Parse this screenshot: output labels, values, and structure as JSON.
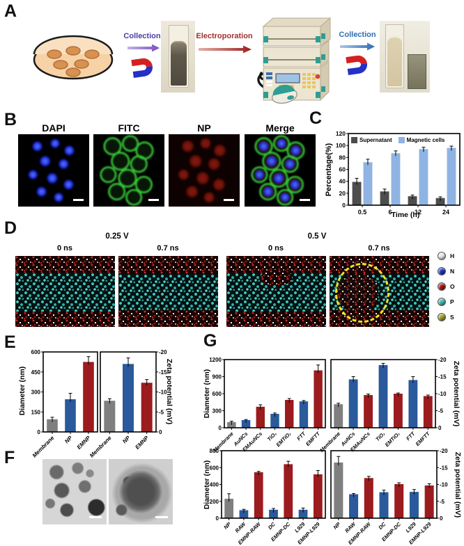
{
  "panel_labels": {
    "a": "A",
    "b": "B",
    "c": "C",
    "d": "D",
    "e": "E",
    "f": "F",
    "g": "G"
  },
  "panel_a": {
    "step1_label": "Collection",
    "step2_label": "Electroporation",
    "step3_label": "Collection",
    "step1_color": "#4a3f9f",
    "step2_color": "#a33030",
    "step3_color": "#2f6db5"
  },
  "panel_b": {
    "image_labels": [
      "DAPI",
      "FITC",
      "NP",
      "Merge"
    ]
  },
  "panel_d": {
    "voltage_labels": [
      "0.25 V",
      "0.5 V"
    ],
    "time_labels": [
      "0 ns",
      "0.7 ns",
      "0 ns",
      "0.7 ns"
    ],
    "atom_legend": [
      {
        "label": "H",
        "color": "#e8e8e8"
      },
      {
        "label": "N",
        "color": "#1c35c0"
      },
      {
        "label": "O",
        "color": "#a31515"
      },
      {
        "label": "P",
        "color": "#45b8b0"
      },
      {
        "label": "S",
        "color": "#9b9b2a"
      }
    ]
  },
  "chart_data": [
    {
      "id": "c_separation",
      "type": "bar",
      "categories": [
        "0.5",
        "6",
        "12",
        "24"
      ],
      "series": [
        {
          "name": "Supernatant",
          "color": "#4d4d4d",
          "values": [
            39,
            23,
            15,
            12
          ],
          "errors": [
            6,
            4,
            2,
            2
          ]
        },
        {
          "name": "Magnetic cells",
          "color": "#8fb4e3",
          "values": [
            72,
            87,
            94,
            96
          ],
          "errors": [
            5,
            4,
            3,
            3
          ]
        }
      ],
      "ylabel": "Percentage(%)",
      "xlabel": "Time (h)",
      "ylim": [
        0,
        120
      ],
      "yticks": [
        0,
        20,
        40,
        60,
        80,
        100,
        120
      ],
      "axis_side": "left",
      "legend_position": "top-inside"
    },
    {
      "id": "e_diameter",
      "type": "bar",
      "categories": [
        "Membrane",
        "NP",
        "EMNP"
      ],
      "series": [
        {
          "colors": [
            "#7f7f7f",
            "#2a5a9b",
            "#9c1b1e"
          ],
          "values": [
            95,
            245,
            525
          ],
          "errors": [
            15,
            45,
            40
          ]
        }
      ],
      "ylabel": "Diameter (nm)",
      "xlabel": "",
      "ylim": [
        0,
        600
      ],
      "yticks": [
        0,
        150,
        300,
        450,
        600
      ],
      "axis_side": "left"
    },
    {
      "id": "e_zeta",
      "type": "bar",
      "categories": [
        "Membrane",
        "NP",
        "EMNP"
      ],
      "series": [
        {
          "colors": [
            "#7f7f7f",
            "#2a5a9b",
            "#9c1b1e"
          ],
          "values": [
            -7.8,
            -17,
            -12.3
          ],
          "errors": [
            0.5,
            1.5,
            0.8
          ]
        }
      ],
      "ylabel": "Zeta potential (mV)",
      "xlabel": "",
      "ylim": [
        0,
        -20
      ],
      "yticks": [
        0,
        -5,
        -10,
        -15,
        -20
      ],
      "axis_side": "right"
    },
    {
      "id": "g_top_diameter",
      "type": "bar",
      "categories": [
        "Membrane",
        "AuNCs",
        "EMAuNCs",
        "TiO₂",
        "EMTiO₂",
        "FTT",
        "EMFTT"
      ],
      "series": [
        {
          "colors": [
            "#7f7f7f",
            "#2a5a9b",
            "#9c1b1e",
            "#2a5a9b",
            "#9c1b1e",
            "#2a5a9b",
            "#9c1b1e"
          ],
          "values": [
            100,
            135,
            370,
            245,
            490,
            465,
            1010
          ],
          "errors": [
            15,
            10,
            35,
            15,
            25,
            15,
            95
          ]
        }
      ],
      "ylabel": "Diameter (nm)",
      "xlabel": "",
      "ylim": [
        0,
        1200
      ],
      "yticks": [
        0,
        300,
        600,
        900,
        1200
      ],
      "axis_side": "left"
    },
    {
      "id": "g_top_zeta",
      "type": "bar",
      "categories": [
        "Membrane",
        "AuNCs",
        "EMAuNCs",
        "TiO₂",
        "EMTiO₂",
        "FTT",
        "EMFTT"
      ],
      "series": [
        {
          "colors": [
            "#7f7f7f",
            "#2a5a9b",
            "#9c1b1e",
            "#2a5a9b",
            "#9c1b1e",
            "#2a5a9b",
            "#9c1b1e"
          ],
          "values": [
            -6.9,
            -14.2,
            -9.6,
            -18.4,
            -10,
            -14,
            -9.3
          ],
          "errors": [
            0.3,
            0.8,
            0.3,
            0.5,
            0.2,
            1,
            0.3
          ]
        }
      ],
      "ylabel": "Zeta potential (mV)",
      "xlabel": "",
      "ylim": [
        0,
        -20
      ],
      "yticks": [
        0,
        -5,
        -10,
        -15,
        -20
      ],
      "axis_side": "right"
    },
    {
      "id": "g_bottom_diameter",
      "type": "bar",
      "categories": [
        "NP",
        "RAW",
        "EMNP-RAW",
        "DC",
        "EMNP-DC",
        "L929",
        "EMNP-L929"
      ],
      "series": [
        {
          "colors": [
            "#7f7f7f",
            "#2a5a9b",
            "#9c1b1e",
            "#2a5a9b",
            "#9c1b1e",
            "#2a5a9b",
            "#9c1b1e"
          ],
          "values": [
            230,
            95,
            545,
            100,
            640,
            100,
            520
          ],
          "errors": [
            60,
            10,
            10,
            15,
            35,
            20,
            45
          ]
        }
      ],
      "ylabel": "Diameter (nm)",
      "xlabel": "",
      "ylim": [
        0,
        800
      ],
      "yticks": [
        0,
        200,
        400,
        600,
        800
      ],
      "axis_side": "left"
    },
    {
      "id": "g_bottom_zeta",
      "type": "bar",
      "categories": [
        "NP",
        "RAW",
        "EMNP-RAW",
        "DC",
        "EMNP-DC",
        "L929",
        "EMNP-L929"
      ],
      "series": [
        {
          "colors": [
            "#7f7f7f",
            "#2a5a9b",
            "#9c1b1e",
            "#2a5a9b",
            "#9c1b1e",
            "#2a5a9b",
            "#9c1b1e"
          ],
          "values": [
            -16.5,
            -7.1,
            -11.9,
            -7.7,
            -10.1,
            -7.8,
            -9.7
          ],
          "errors": [
            1.8,
            0.2,
            0.5,
            0.6,
            0.4,
            0.7,
            0.5
          ]
        }
      ],
      "ylabel": "Zeta potential (mV)",
      "xlabel": "",
      "ylim": [
        0,
        -20
      ],
      "yticks": [
        0,
        -5,
        -10,
        -15,
        -20
      ],
      "axis_side": "right"
    }
  ]
}
